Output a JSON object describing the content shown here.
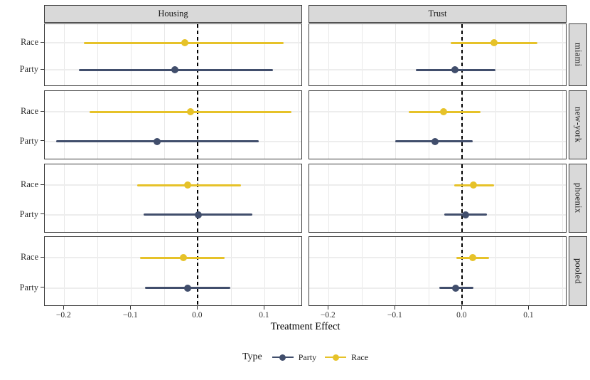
{
  "chart_data": {
    "type": "scatter",
    "subtype": "forest-pointrange",
    "xlabel": "Treatment Effect",
    "facet_columns": [
      "Housing",
      "Trust"
    ],
    "facet_rows": [
      "miami",
      "new-york",
      "phoenix",
      "pooled"
    ],
    "categories": [
      "Race",
      "Party"
    ],
    "xlim": [
      -0.229,
      0.157
    ],
    "x_ticks": [
      {
        "value": -0.2,
        "label": "−0.2"
      },
      {
        "value": -0.1,
        "label": "−0.1"
      },
      {
        "value": 0.0,
        "label": "0.0"
      },
      {
        "value": 0.1,
        "label": "0.1"
      }
    ],
    "x_gridlines": [
      -0.2,
      -0.15,
      -0.1,
      -0.05,
      0,
      0.05,
      0.1,
      0.15
    ],
    "zero_line": 0,
    "grid": true,
    "colors": {
      "Race": "#e6c229",
      "Party": "#414e6c",
      "strip_bg": "#d9d9d9",
      "panel_border": "#3c3c3c",
      "gridline": "#e8e8e8",
      "zero_line": "#000000"
    },
    "legend": {
      "title": "Type",
      "position": "bottom",
      "entries": [
        {
          "label": "Party",
          "color": "#414e6c"
        },
        {
          "label": "Race",
          "color": "#e6c229"
        }
      ]
    },
    "points": [
      {
        "facet_col": "Housing",
        "facet_row": "miami",
        "category": "Race",
        "estimate": -0.02,
        "ci_low": -0.17,
        "ci_high": 0.128
      },
      {
        "facet_col": "Housing",
        "facet_row": "miami",
        "category": "Party",
        "estimate": -0.034,
        "ci_low": -0.178,
        "ci_high": 0.112
      },
      {
        "facet_col": "Housing",
        "facet_row": "new-york",
        "category": "Race",
        "estimate": -0.011,
        "ci_low": -0.162,
        "ci_high": 0.14
      },
      {
        "facet_col": "Housing",
        "facet_row": "new-york",
        "category": "Party",
        "estimate": -0.061,
        "ci_low": -0.212,
        "ci_high": 0.091
      },
      {
        "facet_col": "Housing",
        "facet_row": "phoenix",
        "category": "Race",
        "estimate": -0.015,
        "ci_low": -0.091,
        "ci_high": 0.064
      },
      {
        "facet_col": "Housing",
        "facet_row": "phoenix",
        "category": "Party",
        "estimate": 0.001,
        "ci_low": -0.081,
        "ci_high": 0.081
      },
      {
        "facet_col": "Housing",
        "facet_row": "pooled",
        "category": "Race",
        "estimate": -0.022,
        "ci_low": -0.086,
        "ci_high": 0.04
      },
      {
        "facet_col": "Housing",
        "facet_row": "pooled",
        "category": "Party",
        "estimate": -0.015,
        "ci_low": -0.079,
        "ci_high": 0.049
      },
      {
        "facet_col": "Trust",
        "facet_row": "miami",
        "category": "Race",
        "estimate": 0.047,
        "ci_low": -0.017,
        "ci_high": 0.112
      },
      {
        "facet_col": "Trust",
        "facet_row": "miami",
        "category": "Party",
        "estimate": -0.011,
        "ci_low": -0.07,
        "ci_high": 0.05
      },
      {
        "facet_col": "Trust",
        "facet_row": "new-york",
        "category": "Race",
        "estimate": -0.028,
        "ci_low": -0.08,
        "ci_high": 0.027
      },
      {
        "facet_col": "Trust",
        "facet_row": "new-york",
        "category": "Party",
        "estimate": -0.041,
        "ci_low": -0.1,
        "ci_high": 0.016
      },
      {
        "facet_col": "Trust",
        "facet_row": "phoenix",
        "category": "Race",
        "estimate": 0.017,
        "ci_low": -0.012,
        "ci_high": 0.047
      },
      {
        "facet_col": "Trust",
        "facet_row": "phoenix",
        "category": "Party",
        "estimate": 0.005,
        "ci_low": -0.027,
        "ci_high": 0.037
      },
      {
        "facet_col": "Trust",
        "facet_row": "pooled",
        "category": "Race",
        "estimate": 0.016,
        "ci_low": -0.009,
        "ci_high": 0.04
      },
      {
        "facet_col": "Trust",
        "facet_row": "pooled",
        "category": "Party",
        "estimate": -0.01,
        "ci_low": -0.034,
        "ci_high": 0.017
      }
    ]
  }
}
